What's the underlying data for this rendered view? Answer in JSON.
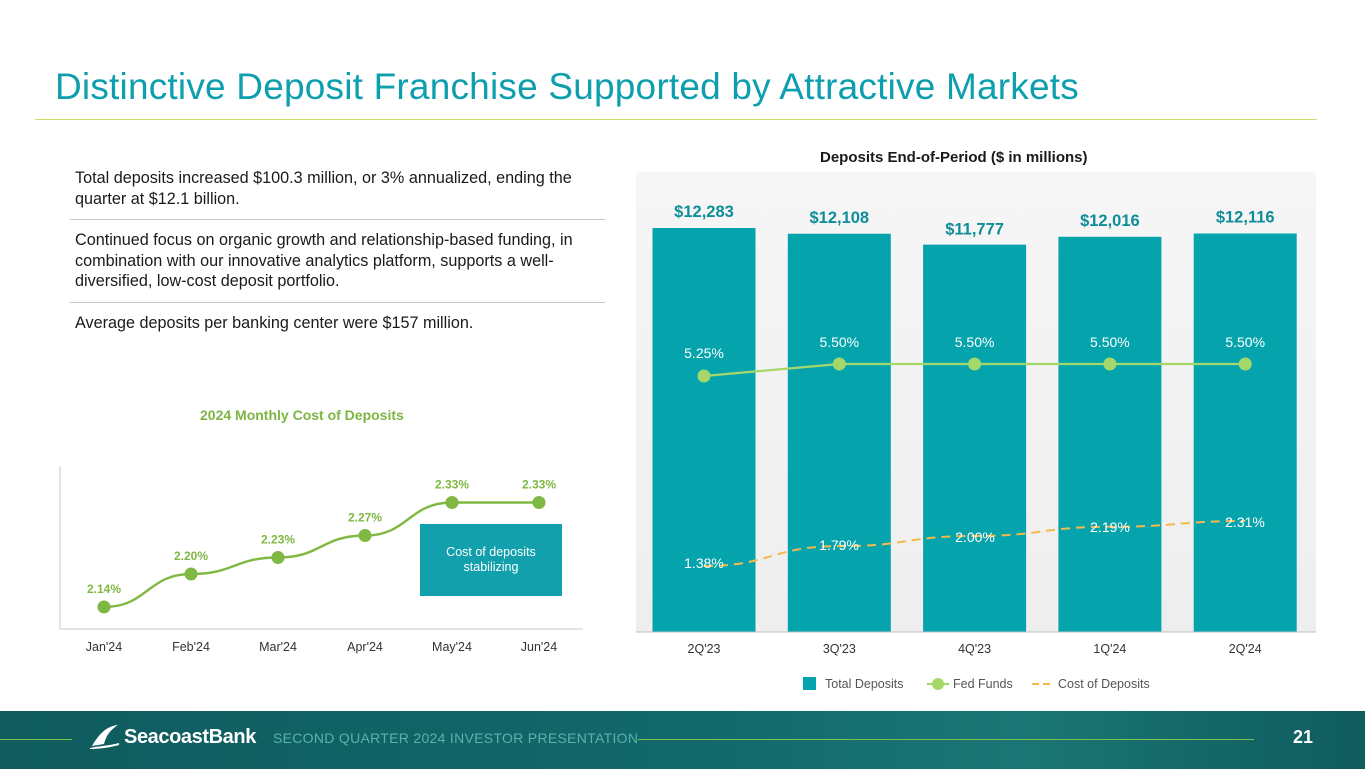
{
  "title": "Distinctive Deposit Franchise Supported by Attractive Markets",
  "bullets": [
    "Total deposits increased $100.3 million, or 3% annualized, ending the quarter at $12.1 billion.",
    "Continued focus on organic growth and relationship-based funding, in combination with our innovative analytics platform, supports a well-diversified, low-cost deposit portfolio.",
    "Average deposits per banking center were $157 million."
  ],
  "colors": {
    "title": "#0e9fae",
    "bar": "#05a4ad",
    "fed_funds": "#a5d86a",
    "cost_of_deposits_line": "#f5b84b",
    "monthly_line": "#7fb843",
    "footer": "#0f5b5e"
  },
  "chart_data": [
    {
      "type": "bar",
      "title": "Deposits End-of-Period ($ in millions)",
      "categories": [
        "2Q'23",
        "3Q'23",
        "4Q'23",
        "1Q'24",
        "2Q'24"
      ],
      "series": [
        {
          "name": "Total Deposits",
          "type": "bar",
          "values": [
            12283,
            12108,
            11777,
            12016,
            12116
          ],
          "labels": [
            "$12,283",
            "$12,108",
            "$11,777",
            "$12,016",
            "$12,116"
          ]
        },
        {
          "name": "Fed Funds",
          "type": "line",
          "values": [
            5.25,
            5.5,
            5.5,
            5.5,
            5.5
          ],
          "labels": [
            "5.25%",
            "5.50%",
            "5.50%",
            "5.50%",
            "5.50%"
          ]
        },
        {
          "name": "Cost of Deposits",
          "type": "line-dashed",
          "values": [
            1.38,
            1.79,
            2.0,
            2.19,
            2.31
          ],
          "labels": [
            "1.38%",
            "1.79%",
            "2.00%",
            "2.19%",
            "2.31%"
          ]
        }
      ],
      "legend": "bottom"
    },
    {
      "type": "line",
      "title": "2024 Monthly Cost of Deposits",
      "categories": [
        "Jan'24",
        "Feb'24",
        "Mar'24",
        "Apr'24",
        "May'24",
        "Jun'24"
      ],
      "values": [
        2.14,
        2.2,
        2.23,
        2.27,
        2.33,
        2.33
      ],
      "labels": [
        "2.14%",
        "2.20%",
        "2.23%",
        "2.27%",
        "2.33%",
        "2.33%"
      ],
      "annotation": "Cost of deposits stabilizing"
    }
  ],
  "footer": {
    "logo_text": "SeacoastBank",
    "label": "SECOND QUARTER 2024 INVESTOR PRESENTATION",
    "page_number": "21"
  }
}
